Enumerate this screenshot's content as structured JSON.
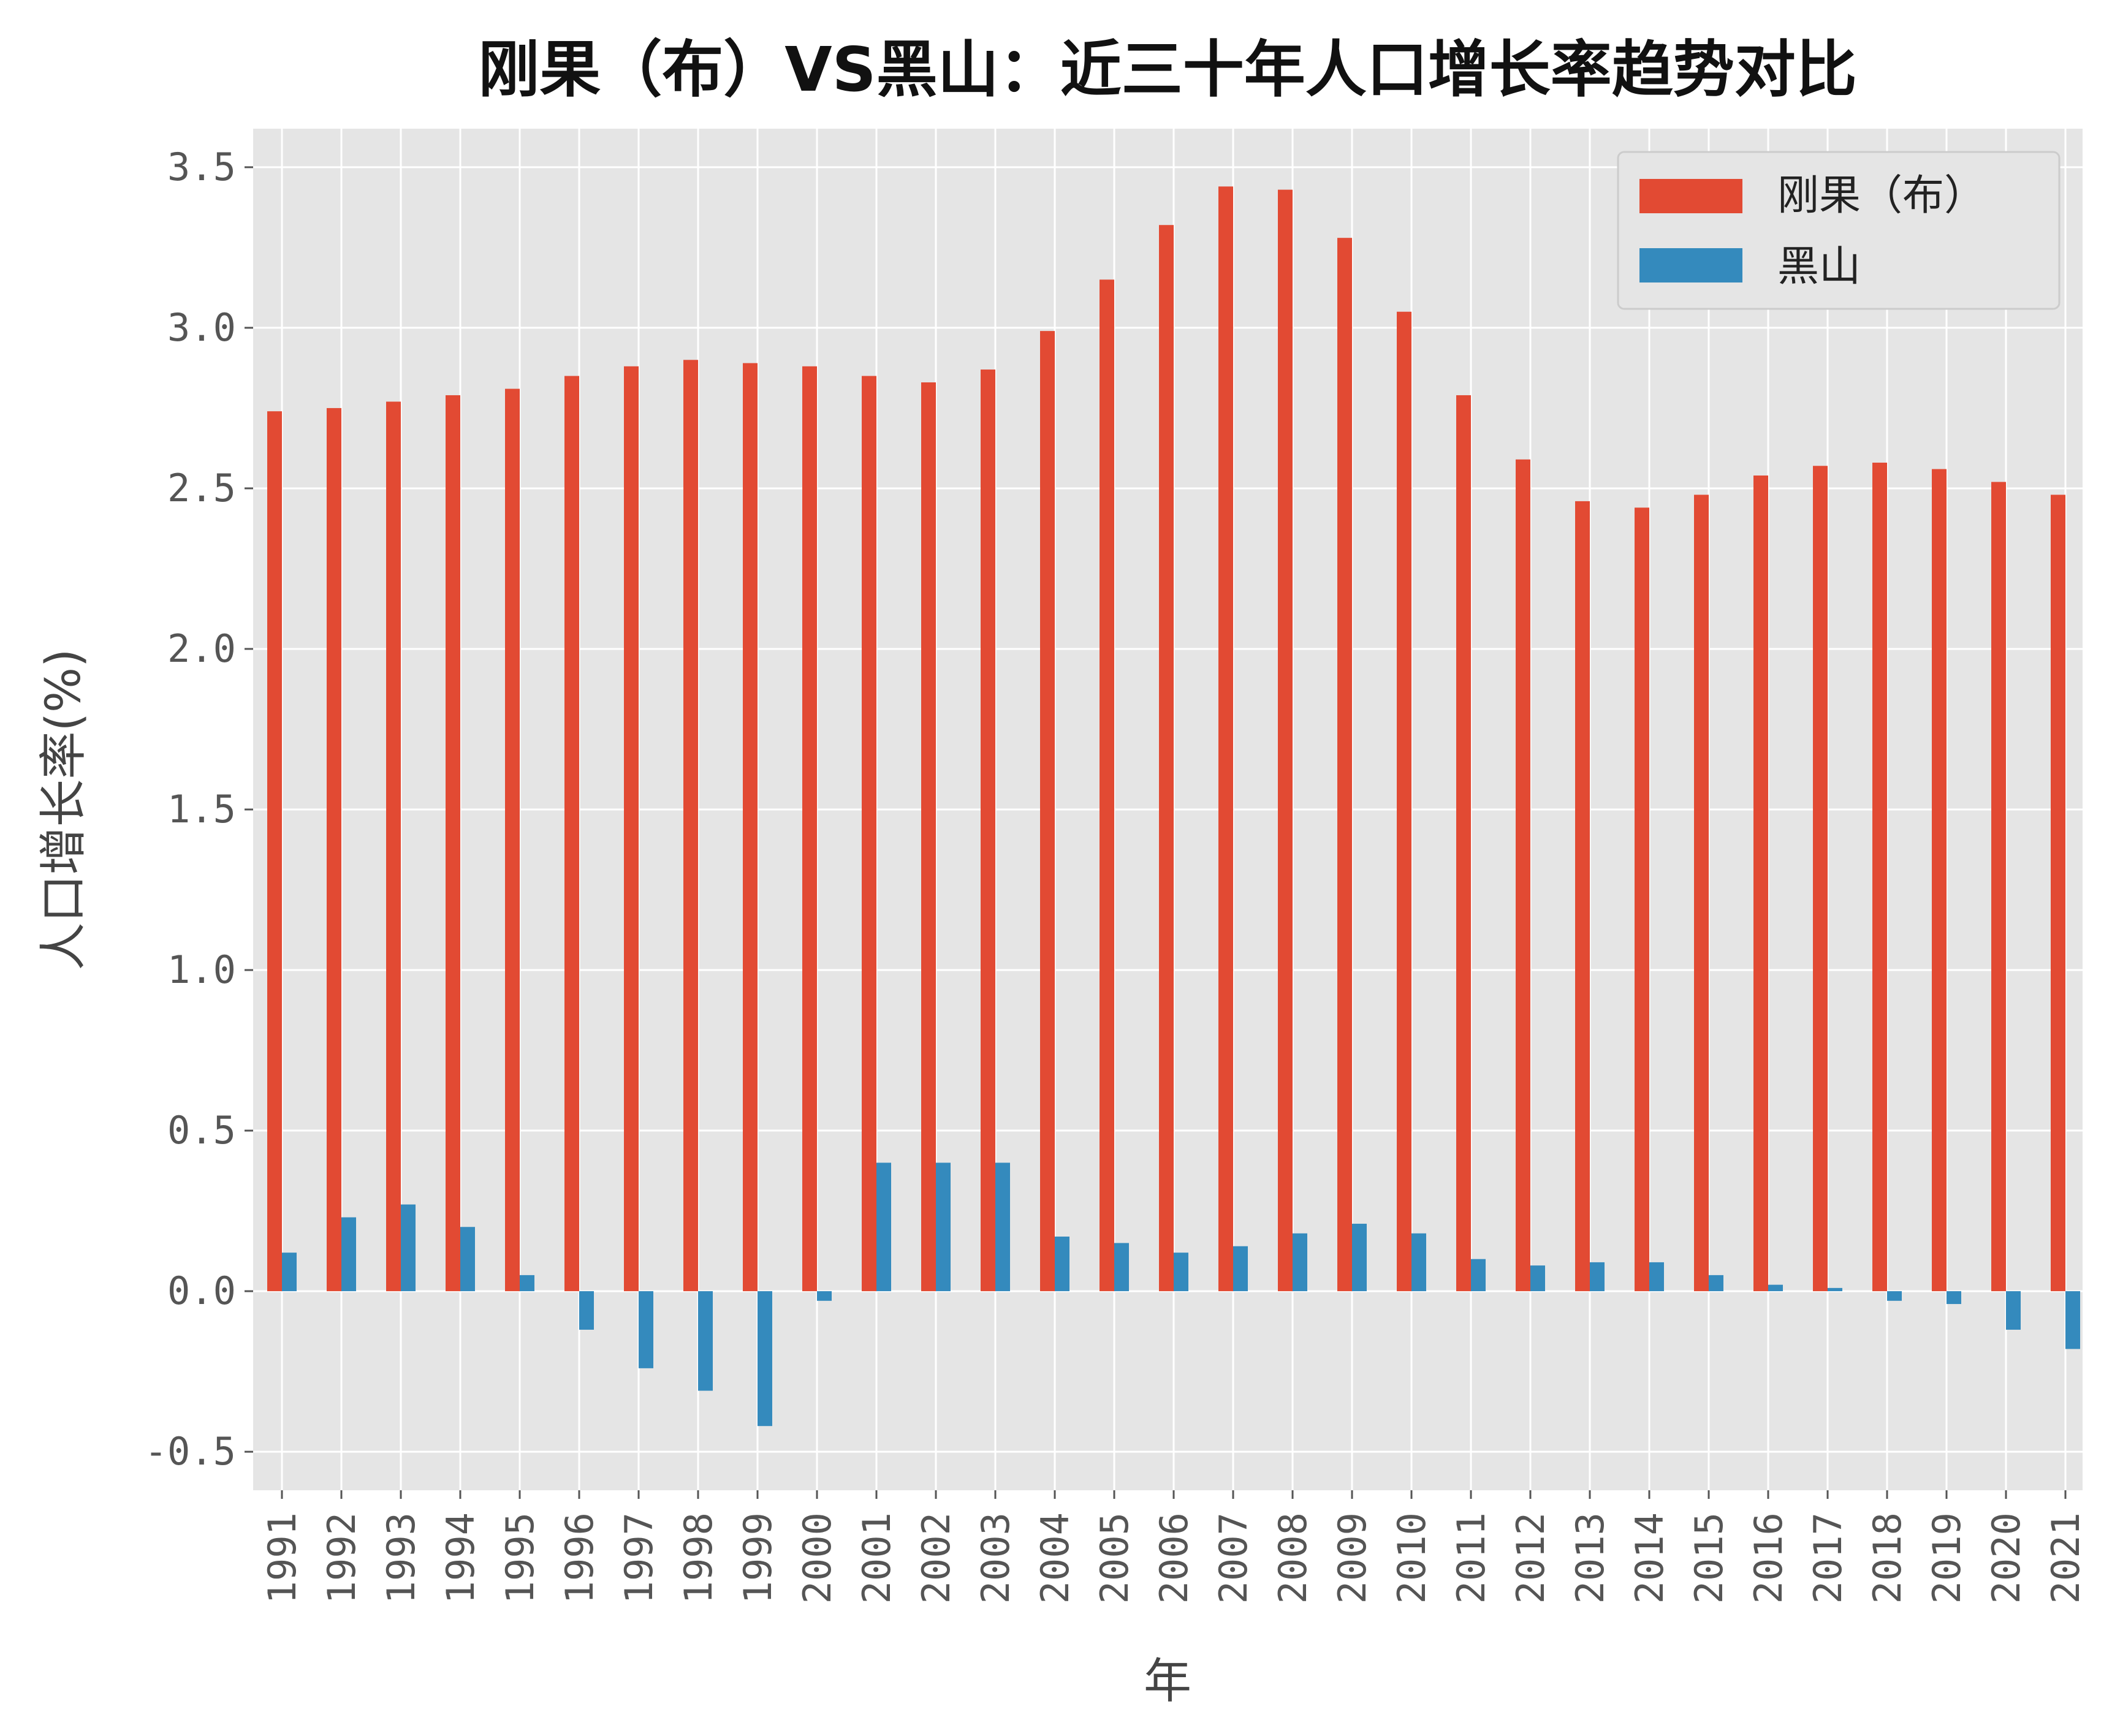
{
  "chart_data": {
    "type": "bar",
    "title": "刚果（布）VS黑山：近三十年人口增长率趋势对比",
    "xlabel": "年",
    "ylabel": "人口增长率(%)",
    "ylim": [
      -0.62,
      3.62
    ],
    "yticks": [
      "-0.5",
      "0.0",
      "0.5",
      "1.0",
      "1.5",
      "2.0",
      "2.5",
      "3.0",
      "3.5"
    ],
    "grid": true,
    "legend_position": "top-right",
    "categories": [
      "1991",
      "1992",
      "1993",
      "1994",
      "1995",
      "1996",
      "1997",
      "1998",
      "1999",
      "2000",
      "2001",
      "2002",
      "2003",
      "2004",
      "2005",
      "2006",
      "2007",
      "2008",
      "2009",
      "2010",
      "2011",
      "2012",
      "2013",
      "2014",
      "2015",
      "2016",
      "2017",
      "2018",
      "2019",
      "2020",
      "2021"
    ],
    "series": [
      {
        "name": "刚果（布）",
        "color": "#e24a33",
        "values": [
          2.74,
          2.75,
          2.77,
          2.79,
          2.81,
          2.85,
          2.88,
          2.9,
          2.89,
          2.88,
          2.85,
          2.83,
          2.87,
          2.99,
          3.15,
          3.32,
          3.44,
          3.43,
          3.28,
          3.05,
          2.79,
          2.59,
          2.46,
          2.44,
          2.48,
          2.54,
          2.57,
          2.58,
          2.56,
          2.52,
          2.48
        ]
      },
      {
        "name": "黑山",
        "color": "#348abd",
        "values": [
          0.12,
          0.23,
          0.27,
          0.2,
          0.05,
          -0.12,
          -0.24,
          -0.31,
          -0.42,
          -0.03,
          0.4,
          0.4,
          0.4,
          0.17,
          0.15,
          0.12,
          0.14,
          0.18,
          0.21,
          0.18,
          0.1,
          0.08,
          0.09,
          0.09,
          0.05,
          0.02,
          0.01,
          -0.03,
          -0.04,
          -0.12,
          -0.18
        ]
      }
    ]
  },
  "colors": {
    "plot_background": "#e5e5e5",
    "grid": "#ffffff"
  }
}
